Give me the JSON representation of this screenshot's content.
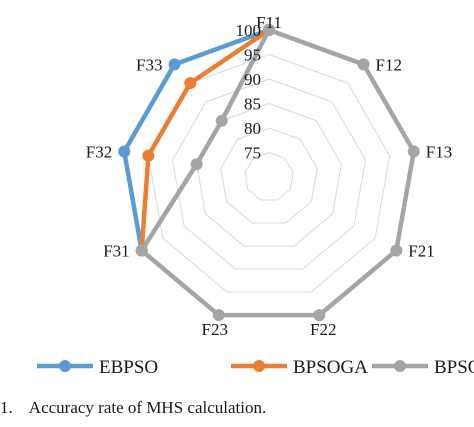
{
  "chart_data": {
    "type": "radar",
    "categories": [
      "F11",
      "F12",
      "F13",
      "F21",
      "F22",
      "F23",
      "F31",
      "F32",
      "F33"
    ],
    "rlim": [
      70,
      100
    ],
    "rticks": [
      75,
      80,
      85,
      90,
      95,
      100
    ],
    "series": [
      {
        "name": "EBPSO",
        "color": "#5b9bd5",
        "values": [
          100,
          null,
          null,
          null,
          null,
          null,
          100,
          100,
          100
        ]
      },
      {
        "name": "BPSOGA",
        "color": "#ed7d31",
        "values": [
          100,
          null,
          null,
          null,
          null,
          null,
          100,
          95,
          95
        ]
      },
      {
        "name": "BPSO",
        "color": "#a5a5a5",
        "values": [
          100,
          100,
          100,
          100,
          100,
          100,
          100,
          85,
          85
        ]
      }
    ],
    "grid": true,
    "legend": "bottom"
  },
  "caption": {
    "text": "1.    Accuracy rate of MHS calculation."
  }
}
